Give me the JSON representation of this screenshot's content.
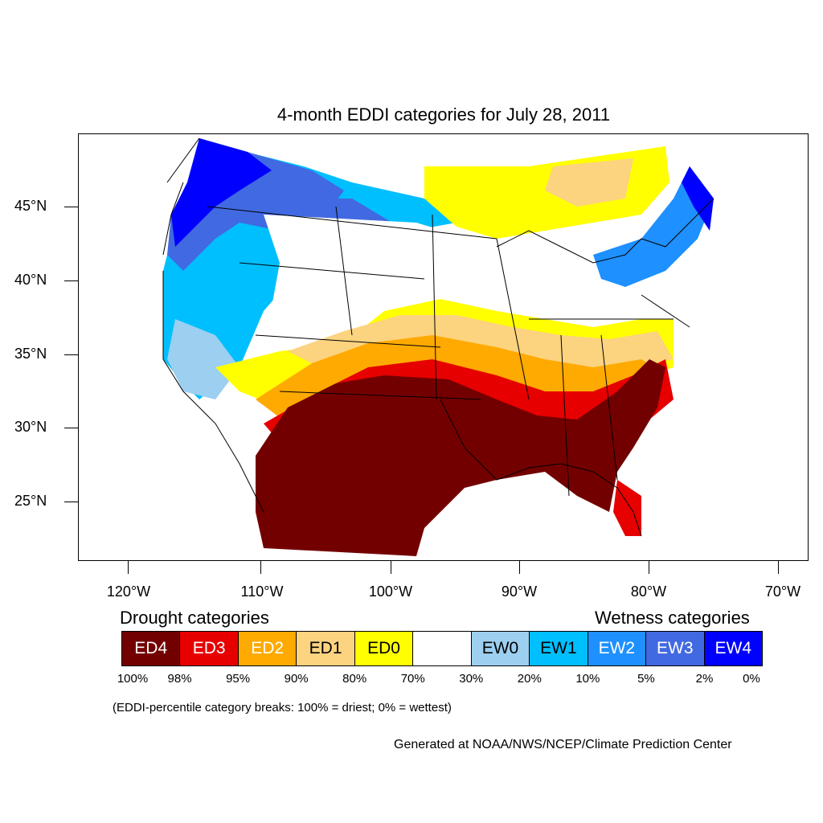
{
  "title": "4-month EDDI categories for July 28, 2011",
  "lat_labels": [
    "45°N",
    "40°N",
    "35°N",
    "30°N",
    "25°N"
  ],
  "lon_labels": [
    "120°W",
    "110°W",
    "100°W",
    "90°W",
    "80°W",
    "70°W"
  ],
  "legend": {
    "drought_heading": "Drought categories",
    "wetness_heading": "Wetness categories",
    "categories": [
      {
        "label": "ED4",
        "color": "#730000",
        "text_color": "#ffffff"
      },
      {
        "label": "ED3",
        "color": "#e60000",
        "text_color": "#ffffff"
      },
      {
        "label": "ED2",
        "color": "#ffaa00",
        "text_color": "#ffffff"
      },
      {
        "label": "ED1",
        "color": "#fcd37f",
        "text_color": "#000000"
      },
      {
        "label": "ED0",
        "color": "#ffff00",
        "text_color": "#000000"
      },
      {
        "label": "",
        "color": "#ffffff",
        "text_color": "#000000"
      },
      {
        "label": "EW0",
        "color": "#9ccff0",
        "text_color": "#000000"
      },
      {
        "label": "EW1",
        "color": "#00bfff",
        "text_color": "#000000"
      },
      {
        "label": "EW2",
        "color": "#1e90ff",
        "text_color": "#ffffff"
      },
      {
        "label": "EW3",
        "color": "#4169e1",
        "text_color": "#ffffff"
      },
      {
        "label": "EW4",
        "color": "#0000ff",
        "text_color": "#ffffff"
      }
    ],
    "percent_breaks": [
      "100%",
      "98%",
      "95%",
      "90%",
      "80%",
      "70%",
      "30%",
      "20%",
      "10%",
      "5%",
      "2%",
      "0%"
    ]
  },
  "note": "(EDDI-percentile category breaks: 100% = driest; 0% = wettest)",
  "credit": "Generated at NOAA/NWS/NCEP/Climate Prediction Center"
}
